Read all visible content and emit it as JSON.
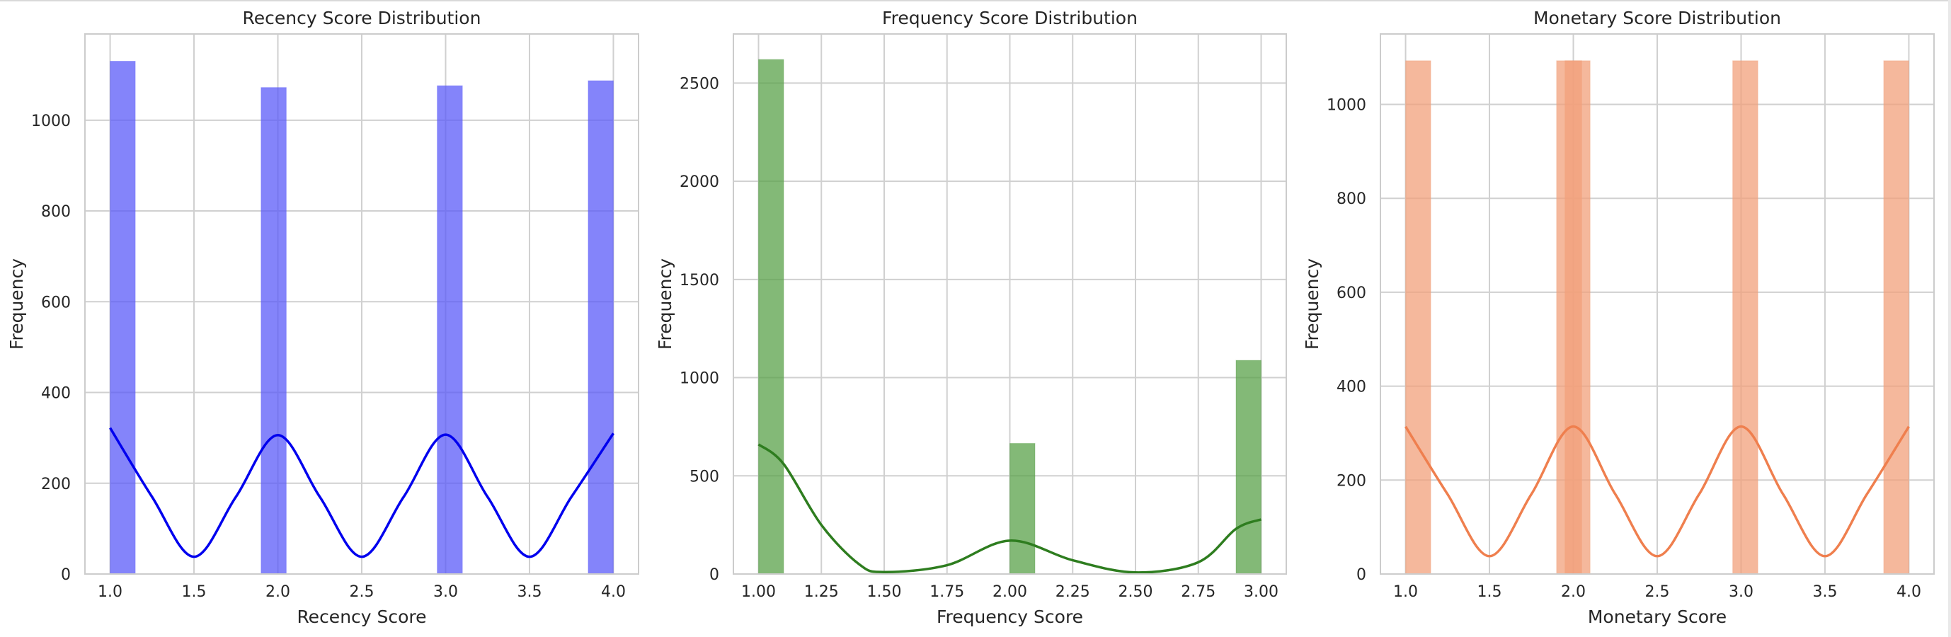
{
  "charts": [
    {
      "title": "Recency Score Distribution",
      "xlabel": "Recency Score",
      "ylabel": "Frequency",
      "xlim": [
        0.85,
        4.15
      ],
      "ylim": [
        0,
        1190
      ],
      "xticks": [
        "1.0",
        "1.5",
        "2.0",
        "2.5",
        "3.0",
        "3.5",
        "4.0"
      ],
      "xtick_values": [
        1.0,
        1.5,
        2.0,
        2.5,
        3.0,
        3.5,
        4.0
      ],
      "yticks": [
        "0",
        "200",
        "400",
        "600",
        "800",
        "1000"
      ],
      "ytick_values": [
        0,
        200,
        400,
        600,
        800,
        1000
      ],
      "bars": [
        {
          "x0": 1.0,
          "x1": 1.15,
          "value": 1130
        },
        {
          "x0": 1.9,
          "x1": 2.05,
          "value": 1072
        },
        {
          "x0": 2.95,
          "x1": 3.1,
          "value": 1076
        },
        {
          "x0": 3.85,
          "x1": 4.0,
          "value": 1087
        }
      ],
      "kde": {
        "x": [
          1.0,
          1.25,
          1.5,
          1.75,
          2.0,
          2.25,
          2.5,
          2.75,
          3.0,
          3.25,
          3.5,
          3.75,
          4.0
        ],
        "y": [
          322,
          170,
          38,
          170,
          306,
          170,
          38,
          170,
          307,
          170,
          38,
          170,
          310
        ]
      },
      "bar_color": "#5b5bf8",
      "kde_color": "#0000ee"
    },
    {
      "title": "Frequency Score Distribution",
      "xlabel": "Frequency Score",
      "ylabel": "Frequency",
      "xlim": [
        0.9,
        3.1
      ],
      "ylim": [
        0,
        2750
      ],
      "xticks": [
        "1.00",
        "1.25",
        "1.50",
        "1.75",
        "2.00",
        "2.25",
        "2.50",
        "2.75",
        "3.00"
      ],
      "xtick_values": [
        1.0,
        1.25,
        1.5,
        1.75,
        2.0,
        2.25,
        2.5,
        2.75,
        3.0
      ],
      "yticks": [
        "0",
        "500",
        "1000",
        "1500",
        "2000",
        "2500"
      ],
      "ytick_values": [
        0,
        500,
        1000,
        1500,
        2000,
        2500
      ],
      "bars": [
        {
          "x0": 1.0,
          "x1": 1.1,
          "value": 2620
        },
        {
          "x0": 2.0,
          "x1": 2.1,
          "value": 665
        },
        {
          "x0": 2.9,
          "x1": 3.0,
          "value": 1088
        }
      ],
      "kde": {
        "x": [
          1.0,
          1.1,
          1.25,
          1.4,
          1.5,
          1.75,
          2.0,
          2.25,
          2.5,
          2.75,
          2.9,
          3.0
        ],
        "y": [
          660,
          560,
          250,
          50,
          10,
          45,
          170,
          70,
          8,
          60,
          230,
          278
        ]
      },
      "bar_color": "#5aa14a",
      "kde_color": "#2e7d1f"
    },
    {
      "title": "Monetary Score Distribution",
      "xlabel": "Monetary Score",
      "ylabel": "Frequency",
      "xlim": [
        0.85,
        4.15
      ],
      "ylim": [
        0,
        1150
      ],
      "xticks": [
        "1.0",
        "1.5",
        "2.0",
        "2.5",
        "3.0",
        "3.5",
        "4.0"
      ],
      "xtick_values": [
        1.0,
        1.5,
        2.0,
        2.5,
        3.0,
        3.5,
        4.0
      ],
      "yticks": [
        "0",
        "200",
        "400",
        "600",
        "800",
        "1000"
      ],
      "ytick_values": [
        0,
        200,
        400,
        600,
        800,
        1000
      ],
      "bars": [
        {
          "x0": 1.0,
          "x1": 1.15,
          "value": 1093
        },
        {
          "x0": 1.9,
          "x1": 2.05,
          "value": 1093
        },
        {
          "x0": 1.95,
          "x1": 2.1,
          "value": 1093
        },
        {
          "x0": 2.95,
          "x1": 3.1,
          "value": 1093
        },
        {
          "x0": 3.85,
          "x1": 4.0,
          "value": 1093
        }
      ],
      "kde": {
        "x": [
          1.0,
          1.25,
          1.5,
          1.75,
          2.0,
          2.25,
          2.5,
          2.75,
          3.0,
          3.25,
          3.5,
          3.75,
          4.0
        ],
        "y": [
          314,
          170,
          38,
          170,
          314,
          170,
          38,
          170,
          314,
          170,
          38,
          170,
          314
        ]
      },
      "bar_color": "#f2a07b",
      "kde_color": "#ef7f4e"
    }
  ]
}
